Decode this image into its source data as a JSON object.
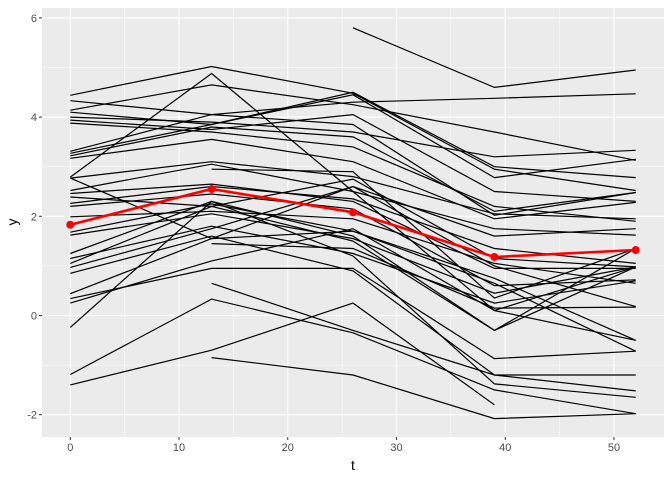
{
  "chart_data": {
    "type": "line",
    "title": "",
    "xlabel": "t",
    "ylabel": "y",
    "xlim": [
      -2.6,
      54.6
    ],
    "ylim": [
      -2.45,
      6.2
    ],
    "x_ticks": [
      0,
      10,
      20,
      30,
      40,
      50
    ],
    "y_ticks": [
      -2,
      0,
      2,
      4,
      6
    ],
    "grid": true,
    "x": [
      0,
      13,
      26,
      39,
      52
    ],
    "individual_color": "#000000",
    "mean_color": "#FF0000",
    "individual_series": [
      [
        4.44,
        5.02,
        4.48,
        2.95,
        2.52
      ],
      [
        4.33,
        4.05,
        3.85,
        2.02,
        2.48
      ],
      [
        4.14,
        4.65,
        4.25,
        3.7,
        3.13
      ],
      [
        4.1,
        3.85,
        4.5,
        3.0,
        2.78
      ],
      [
        4.0,
        3.9,
        3.7,
        3.2,
        3.33
      ],
      [
        3.94,
        3.75,
        4.05,
        2.5,
        2.3
      ],
      [
        3.88,
        3.7,
        3.4,
        2.2,
        1.9
      ],
      [
        3.31,
        4.05,
        4.3,
        4.38,
        4.47
      ],
      [
        3.27,
        3.85,
        4.45,
        2.78,
        3.15
      ],
      [
        3.22,
        3.8,
        3.6,
        2.1,
        2.48
      ],
      [
        3.17,
        3.55,
        3.1,
        1.95,
        2.28
      ],
      [
        2.79,
        4.88,
        2.5,
        0.1,
        0.98
      ],
      [
        2.77,
        3.1,
        2.8,
        2.05,
        1.95
      ],
      [
        2.77,
        1.55,
        2.6,
        1.6,
        1.75
      ],
      [
        2.52,
        3.05,
        2.5,
        1.75,
        1.62
      ],
      [
        2.46,
        2.65,
        2.3,
        0.95,
        0.95
      ],
      [
        2.39,
        2.2,
        2.75,
        1.15,
        0.98
      ],
      [
        2.26,
        2.6,
        2.35,
        1.35,
        1.05
      ],
      [
        2.2,
        2.45,
        2.15,
        0.6,
        0.72
      ],
      [
        1.99,
        2.1,
        1.95,
        1.05,
        0.65
      ],
      [
        1.68,
        2.25,
        1.7,
        0.75,
        -0.5
      ],
      [
        1.62,
        2.05,
        1.55,
        0.45,
        0.98
      ],
      [
        1.25,
        2.3,
        1.6,
        -0.3,
        1.35
      ],
      [
        1.15,
        1.8,
        1.25,
        0.25,
        0.7
      ],
      [
        1.05,
        2.2,
        1.5,
        -0.3,
        0.98
      ],
      [
        0.97,
        1.75,
        2.6,
        1.0,
        0.18
      ],
      [
        0.85,
        1.6,
        0.9,
        -1.2,
        -1.2
      ],
      [
        0.44,
        1.55,
        1.7,
        0.65,
        -0.72
      ],
      [
        0.34,
        0.95,
        0.95,
        -0.87,
        -0.72
      ],
      [
        0.25,
        1.1,
        1.75,
        0.1,
        -0.5
      ],
      [
        -0.24,
        2.3,
        1.2,
        -1.38,
        -1.65
      ],
      [
        -1.19,
        0.33,
        -0.35,
        -1.5,
        -1.98
      ],
      [
        -1.4,
        -0.7,
        0.25,
        -1.8,
        null
      ],
      [
        null,
        0.65,
        -0.3,
        -1.2,
        -1.52
      ],
      [
        null,
        -0.85,
        -1.2,
        -2.08,
        -1.98
      ],
      [
        null,
        null,
        5.8,
        4.6,
        4.95
      ],
      [
        null,
        2.95,
        2.9,
        0.35,
        1.35
      ],
      [
        null,
        1.45,
        1.35,
        0.15,
        0.17
      ]
    ],
    "mean_series": [
      1.83,
      2.55,
      2.08,
      1.18,
      1.32
    ]
  }
}
